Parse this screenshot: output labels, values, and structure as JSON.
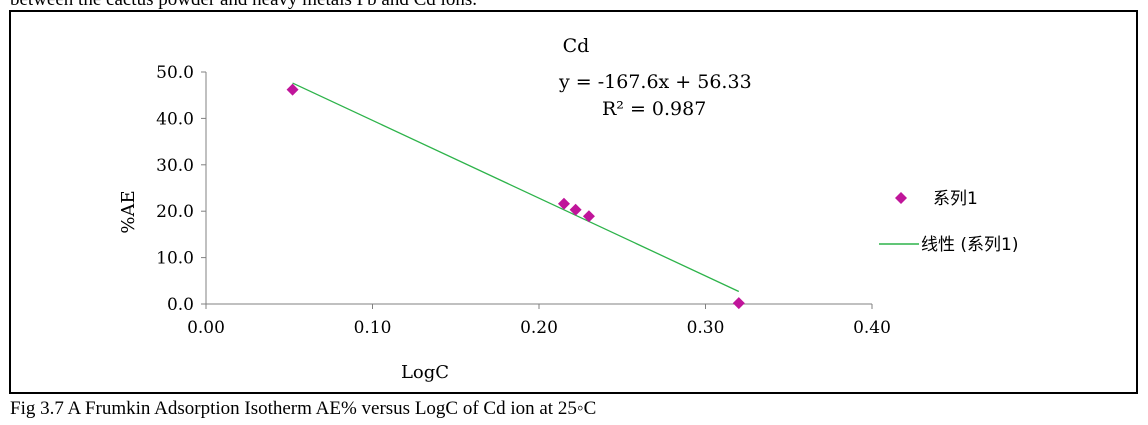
{
  "top_text": "between the cactus powder and heavy metals Pb and Cd ions.",
  "caption": "Fig 3.7 A Frumkin Adsorption Isotherm AE% versus LogC of Cd ion at 25◦C",
  "chart_data": {
    "type": "scatter",
    "title": "Cd",
    "xlabel": "LogC",
    "ylabel": "%AE",
    "xlim": [
      0,
      0.4
    ],
    "ylim": [
      0,
      50
    ],
    "x_ticks": [
      "0.00",
      "0.10",
      "0.20",
      "0.30",
      "0.40"
    ],
    "y_ticks": [
      "0.0",
      "10.0",
      "20.0",
      "30.0",
      "40.0",
      "50.0"
    ],
    "grid": false,
    "legend_position": "right",
    "series": [
      {
        "name": "系列1",
        "marker": "diamond",
        "color": "#c0159a",
        "points": [
          {
            "x": 0.052,
            "y": 46.2
          },
          {
            "x": 0.215,
            "y": 21.6
          },
          {
            "x": 0.222,
            "y": 20.3
          },
          {
            "x": 0.23,
            "y": 18.9
          },
          {
            "x": 0.32,
            "y": 0.2
          }
        ]
      }
    ],
    "trendline": {
      "name": "线性 (系列1)",
      "color": "#2db34a",
      "slope": -167.6,
      "intercept": 56.33,
      "x_range": [
        0.052,
        0.32
      ],
      "equation": "y = -167.6x + 56.33",
      "r_squared": "R² = 0.987"
    }
  }
}
